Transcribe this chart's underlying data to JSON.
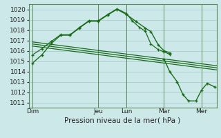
{
  "bg_color": "#cce8e8",
  "grid_color": "#aacccc",
  "line_color": "#1a6b1a",
  "x_ticks_labels": [
    "Dim",
    "Jeu",
    "Lun",
    "Mar",
    "Mer"
  ],
  "x_ticks_pos": [
    0,
    3.5,
    5.0,
    7.0,
    9.0
  ],
  "xlabel": "Pression niveau de la mer( hPa )",
  "ylim": [
    1010.5,
    1020.5
  ],
  "xlim": [
    -0.2,
    9.8
  ],
  "yticks": [
    1011,
    1012,
    1013,
    1014,
    1015,
    1016,
    1017,
    1018,
    1019,
    1020
  ],
  "main_x": [
    0,
    0.5,
    1.0,
    1.5,
    2.0,
    2.5,
    3.0,
    3.5,
    4.0,
    4.5,
    5.0,
    5.5,
    6.0,
    6.3,
    6.7,
    7.0,
    7.3
  ],
  "main_y": [
    1014.8,
    1015.6,
    1016.7,
    1017.5,
    1017.5,
    1018.2,
    1018.85,
    1018.85,
    1019.45,
    1020.0,
    1019.5,
    1018.85,
    1018.2,
    1017.85,
    1016.55,
    1016.0,
    1015.8
  ],
  "upper_x": [
    0,
    0.5,
    1.0,
    1.5,
    2.0,
    2.5,
    3.0,
    3.5,
    4.0,
    4.5,
    5.0,
    5.3,
    5.7,
    6.0,
    6.3,
    6.7,
    7.0,
    7.3
  ],
  "upper_y": [
    1015.6,
    1016.2,
    1016.9,
    1017.55,
    1017.55,
    1018.25,
    1018.9,
    1018.9,
    1019.5,
    1020.05,
    1019.6,
    1018.9,
    1018.25,
    1017.9,
    1016.65,
    1016.1,
    1015.9,
    1015.65
  ],
  "right_x": [
    7.0,
    7.3,
    7.7,
    8.0,
    8.3,
    8.7,
    9.0,
    9.3,
    9.7
  ],
  "right_y": [
    1015.2,
    1014.0,
    1013.0,
    1011.8,
    1011.15,
    1011.15,
    1012.2,
    1012.85,
    1012.5
  ],
  "trend1_x": [
    0.0,
    9.8
  ],
  "trend1_y": [
    1016.85,
    1014.55
  ],
  "trend2_x": [
    0.0,
    9.8
  ],
  "trend2_y": [
    1016.65,
    1014.35
  ],
  "trend3_x": [
    0.0,
    9.8
  ],
  "trend3_y": [
    1016.45,
    1014.15
  ],
  "vlines_x": [
    0.0,
    3.5,
    5.0,
    7.0,
    9.0
  ],
  "tick_fontsize": 6.5,
  "xlabel_fontsize": 7.5
}
